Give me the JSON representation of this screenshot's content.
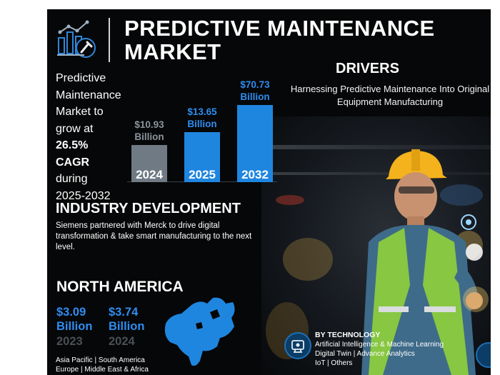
{
  "header": {
    "title_line1": "PREDICTIVE MAINTENANCE",
    "title_line2": "MARKET",
    "logo_icon": "chart-wrench-icon"
  },
  "growth": {
    "line1": "Predictive Maintenance",
    "line2": "Market to",
    "line3": "grow at",
    "cagr_value": "26.5%",
    "cagr_label": "CAGR",
    "line6": "during",
    "period": "2025-2032"
  },
  "chart_data": {
    "type": "bar",
    "categories": [
      "2024",
      "2025",
      "2032"
    ],
    "values": [
      10.93,
      13.65,
      70.73
    ],
    "value_labels": [
      "$10.93\nBillion",
      "$13.65\nBillion",
      "$70.73\nBillion"
    ],
    "value_label_lines": [
      [
        "$10.93",
        "Billion"
      ],
      [
        "$13.65",
        "Billion"
      ],
      [
        "$70.73",
        "Billion"
      ]
    ],
    "unit": "Billion",
    "colors": [
      "#6f7a84",
      "#1f86e0",
      "#1f86e0"
    ],
    "value_label_colors": [
      "#8b949c",
      "#2e8df0",
      "#2e8df0"
    ],
    "ylim": [
      0,
      72
    ],
    "title": "",
    "xlabel": "",
    "ylabel": ""
  },
  "drivers": {
    "title": "DRIVERS",
    "text": "Harnessing Predictive Maintenance Into Original Equipment Manufacturing"
  },
  "industry": {
    "title": "INDUSTRY DEVELOPMENT",
    "text": "Siemens partnered with Merck to drive digital transformation & take smart manufacturing to the next level."
  },
  "north_america": {
    "title": "NORTH AMERICA",
    "values": [
      {
        "amount": "$3.09",
        "unit": "Billion",
        "year": "2023"
      },
      {
        "amount": "$3.74",
        "unit": "Billion",
        "year": "2024"
      }
    ],
    "map_icon": "north-america-map-icon"
  },
  "regions": {
    "line1": "Asia Pacific  |  South America",
    "line2": "Europe  |  Middle East & Africa"
  },
  "technology": {
    "title": "BY TECHNOLOGY",
    "line1": "Artificial Intelligence & Machine Learning",
    "line2": "Digital Twin  |  Advance Analytics",
    "line3": "IoT  |  Others",
    "icon": "ai-chip-icon"
  },
  "colors": {
    "accent_blue": "#1f86e0",
    "bar_gray": "#6f7a84",
    "background": "#060708"
  }
}
